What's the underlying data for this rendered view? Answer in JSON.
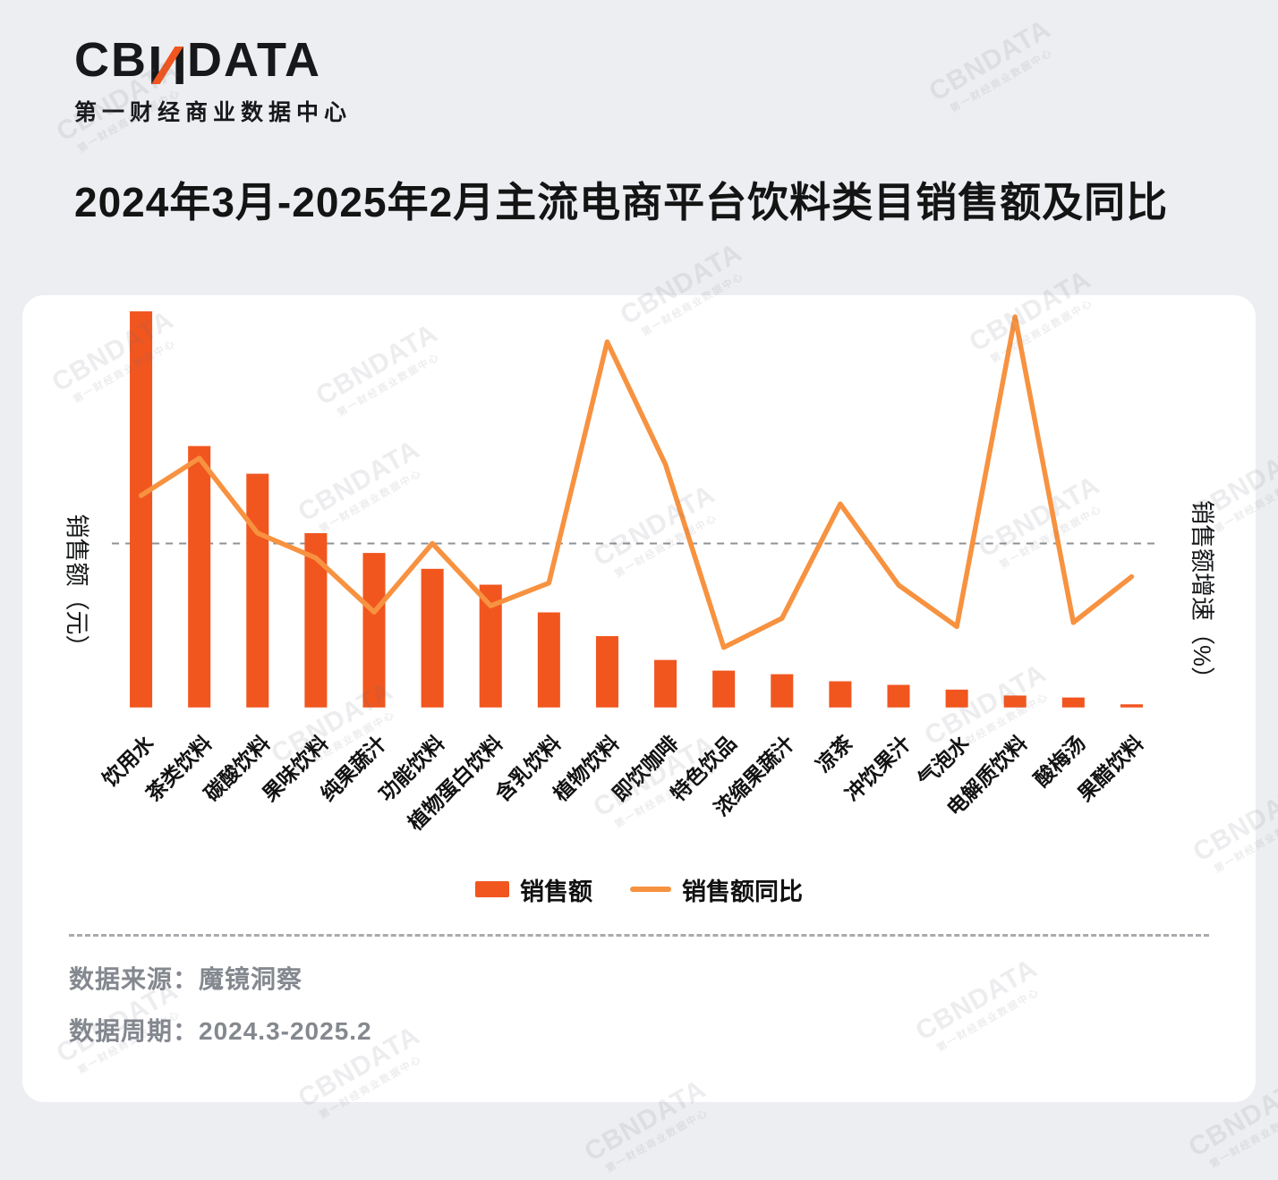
{
  "logo": {
    "brand": "CBNDATA",
    "brand_parts": {
      "left": "CB",
      "mid": "N",
      "right": "DATA"
    },
    "subtitle": "第一财经商业数据中心"
  },
  "title": "2024年3月-2025年2月主流电商平台饮料类目销售额及同比",
  "colors": {
    "bar": "#F1561F",
    "line": "#F79240",
    "zero_line": "#8F9194",
    "background": "#ECEEF1",
    "card": "#FFFFFF",
    "title_text": "#141414",
    "footer_text": "#84888F"
  },
  "chart_data": {
    "type": "bar",
    "combo": "bar+line",
    "title": "2024年3月-2025年2月主流电商平台饮料类目销售额及同比",
    "categories": [
      "饮用水",
      "茶类饮料",
      "碳酸饮料",
      "果味饮料",
      "纯果蔬汁",
      "功能饮料",
      "植物蛋白饮料",
      "含乳饮料",
      "植物饮料",
      "即饮咖啡",
      "特色饮品",
      "浓缩果蔬汁",
      "凉茶",
      "冲饮果汁",
      "气泡水",
      "电解质饮料",
      "酸梅汤",
      "果醋饮料"
    ],
    "series": [
      {
        "name": "销售额",
        "type": "bar",
        "axis": "left",
        "unit": "相对指数（最大类目=100，坐标轴无数值刻度，按柱高估算）",
        "values": [
          100,
          66,
          59,
          44,
          39,
          35,
          31,
          24,
          18,
          12,
          9.3,
          8.4,
          6.6,
          5.7,
          4.5,
          3,
          2.5,
          0.8
        ]
      },
      {
        "name": "销售额同比",
        "type": "line",
        "axis": "right",
        "unit": "%（坐标轴无数值刻度，按虚线=0%估算）",
        "values": [
          23,
          41,
          5,
          -7,
          -33,
          0,
          -30,
          -19,
          97,
          38,
          -50,
          -36,
          19,
          -20,
          -40,
          109,
          -38,
          -16
        ]
      }
    ],
    "ylabel_left": "销售额（元）",
    "ylabel_right": "销售额增速（%）",
    "axis_tick_labels_visible": false,
    "zero_reference_line": {
      "value": 0,
      "style": "dashed"
    },
    "grid": false,
    "legend_position": "bottom"
  },
  "legend": {
    "bar_label": "销售额",
    "line_label": "销售额同比"
  },
  "footer": {
    "source_label": "数据来源：",
    "source_value": "魔镜洞察",
    "period_label": "数据周期：",
    "period_value": "2024.3-2025.2"
  },
  "watermark": {
    "line1": "CBNDATA",
    "line2": "第一财经商业数据中心"
  }
}
